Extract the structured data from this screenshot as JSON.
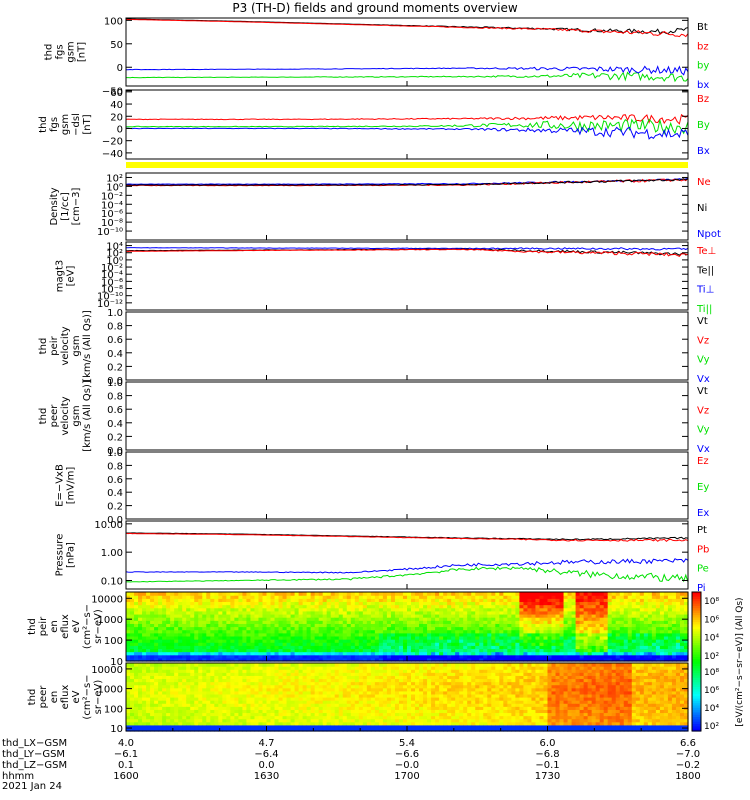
{
  "title": "P3 (TH-D) fields and ground moments overview",
  "colors": {
    "black": "#000000",
    "red": "#ff0000",
    "green": "#00e000",
    "blue": "#0000ff",
    "yellow": "#ffff00"
  },
  "chart_data": [
    {
      "type": "line",
      "ylabel_lines": [
        "thd",
        "fgs",
        "gsm",
        "[nT]"
      ],
      "ylim": [
        -40,
        105
      ],
      "yticks": [
        {
          "v": 100,
          "t": "100"
        },
        {
          "v": 50,
          "t": "50"
        },
        {
          "v": 0,
          "t": "0"
        },
        {
          "v": -50,
          "t": "−50"
        }
      ],
      "legend": [
        {
          "t": "Bt",
          "c": "black"
        },
        {
          "t": "bz",
          "c": "red"
        },
        {
          "t": "by",
          "c": "green"
        },
        {
          "t": "bx",
          "c": "blue"
        }
      ],
      "series": [
        {
          "c": "black",
          "x": [
            0,
            0.2,
            0.4,
            0.6,
            0.75,
            0.85,
            0.95,
            1.0
          ],
          "y": [
            103,
            98,
            92,
            86,
            82,
            78,
            76,
            80
          ],
          "noise": [
            0,
            0,
            0,
            1,
            2,
            4,
            5,
            5
          ]
        },
        {
          "c": "red",
          "x": [
            0,
            0.2,
            0.4,
            0.6,
            0.75,
            0.85,
            0.95,
            1.0
          ],
          "y": [
            102,
            97,
            91,
            85,
            81,
            76,
            72,
            70
          ],
          "noise": [
            0,
            0,
            0,
            1,
            2,
            4,
            6,
            6
          ]
        },
        {
          "c": "green",
          "x": [
            0,
            0.3,
            0.6,
            0.75,
            0.85,
            0.95,
            1.0
          ],
          "y": [
            -22,
            -21,
            -20,
            -19,
            -18,
            -20,
            -22
          ],
          "noise": [
            0.5,
            0.5,
            1,
            3,
            8,
            9,
            10
          ]
        },
        {
          "c": "blue",
          "x": [
            0,
            0.3,
            0.6,
            0.75,
            0.85,
            0.95,
            1.0
          ],
          "y": [
            -5,
            -4,
            -2,
            -3,
            -4,
            -6,
            -8
          ],
          "noise": [
            0.4,
            0.4,
            0.8,
            3,
            6,
            8,
            9
          ]
        }
      ]
    },
    {
      "type": "line",
      "ylabel_lines": [
        "thd",
        "fgs",
        "gsm",
        "−dsl"
      ],
      "ylabel_tail": "[nT]",
      "ylim": [
        -50,
        63
      ],
      "yticks": [
        {
          "v": 60,
          "t": "60"
        },
        {
          "v": 40,
          "t": "40"
        },
        {
          "v": 20,
          "t": "20"
        },
        {
          "v": 0,
          "t": "0"
        },
        {
          "v": -20,
          "t": "−20"
        },
        {
          "v": -40,
          "t": "−40"
        }
      ],
      "legend": [
        {
          "t": "Bz",
          "c": "red"
        },
        {
          "t": "By",
          "c": "green"
        },
        {
          "t": "Bx",
          "c": "blue"
        }
      ],
      "series": [
        {
          "c": "red",
          "x": [
            0,
            0.3,
            0.6,
            0.75,
            0.85,
            0.95,
            1.0
          ],
          "y": [
            15,
            15,
            16,
            17,
            18,
            16,
            15
          ],
          "noise": [
            0.5,
            0.5,
            1,
            3,
            5,
            7,
            8
          ]
        },
        {
          "c": "green",
          "x": [
            0,
            0.3,
            0.55,
            0.7,
            0.8,
            0.9,
            1.0
          ],
          "y": [
            3,
            3,
            4,
            6,
            5,
            4,
            3
          ],
          "noise": [
            0.5,
            0.5,
            1,
            4,
            9,
            11,
            12
          ]
        },
        {
          "c": "blue",
          "x": [
            0,
            0.3,
            0.6,
            0.75,
            0.85,
            0.95,
            1.0
          ],
          "y": [
            0,
            0,
            -1,
            -3,
            -5,
            -8,
            -10
          ],
          "noise": [
            0.4,
            0.4,
            1,
            4,
            8,
            10,
            11
          ]
        }
      ]
    },
    {
      "type": "line",
      "ylabel_lines": [
        "Density",
        "[1/cc]",
        "[cm−3]"
      ],
      "ylim": [
        -12,
        3
      ],
      "yticks": [
        {
          "v": 2,
          "t": "10²"
        },
        {
          "v": 0,
          "t": "10⁰"
        },
        {
          "v": -2,
          "t": "10⁻²"
        },
        {
          "v": -4,
          "t": "10⁻⁴"
        },
        {
          "v": -6,
          "t": "10⁻⁶"
        },
        {
          "v": -8,
          "t": "10⁻⁸"
        },
        {
          "v": -10,
          "t": "10⁻¹⁰"
        }
      ],
      "legend": [
        {
          "t": "Ne",
          "c": "red"
        },
        {
          "t": "Ni",
          "c": "black"
        },
        {
          "t": "Npot",
          "c": "blue"
        }
      ],
      "series": [
        {
          "c": "blue",
          "x": [
            0,
            0.3,
            0.6,
            0.75,
            0.9,
            1.0
          ],
          "y": [
            0.5,
            0.5,
            0.6,
            0.9,
            1.3,
            1.6
          ],
          "noise": [
            0.05,
            0.05,
            0.1,
            0.2,
            0.2,
            0.2
          ]
        },
        {
          "c": "red",
          "x": [
            0,
            0.3,
            0.6,
            0.75,
            0.9,
            1.0
          ],
          "y": [
            0.2,
            0.2,
            0.3,
            0.8,
            1.2,
            1.5
          ],
          "noise": [
            0.05,
            0.05,
            0.1,
            0.25,
            0.3,
            0.3
          ]
        },
        {
          "c": "black",
          "x": [
            0,
            0.3,
            0.6,
            0.75,
            0.9,
            1.0
          ],
          "y": [
            0.3,
            0.3,
            0.4,
            0.85,
            1.25,
            1.55
          ],
          "noise": [
            0.05,
            0.05,
            0.1,
            0.2,
            0.25,
            0.25
          ]
        }
      ]
    },
    {
      "type": "line",
      "ylabel_lines": [
        "magt3",
        "[eV]"
      ],
      "ylim": [
        -14,
        5
      ],
      "yticks": [
        {
          "v": 4,
          "t": "10⁴"
        },
        {
          "v": 2,
          "t": "10²"
        },
        {
          "v": 0,
          "t": "10⁰"
        },
        {
          "v": -2,
          "t": "10⁻²"
        },
        {
          "v": -4,
          "t": "10⁻⁴"
        },
        {
          "v": -6,
          "t": "10⁻⁶"
        },
        {
          "v": -8,
          "t": "10⁻⁸"
        },
        {
          "v": -10,
          "t": "10⁻¹⁰"
        },
        {
          "v": -12,
          "t": "10⁻¹²"
        }
      ],
      "legend": [
        {
          "t": "Te⊥",
          "c": "red"
        },
        {
          "t": "Te||",
          "c": "black"
        },
        {
          "t": "Ti⊥",
          "c": "blue"
        },
        {
          "t": "Ti||",
          "c": "green"
        }
      ],
      "series": [
        {
          "c": "blue",
          "x": [
            0,
            0.3,
            0.6,
            0.75,
            0.9,
            1.0
          ],
          "y": [
            3.4,
            3.3,
            3.2,
            3.2,
            3.1,
            3.0
          ],
          "noise": [
            0.05,
            0.05,
            0.1,
            0.2,
            0.3,
            0.3
          ]
        },
        {
          "c": "black",
          "x": [
            0,
            0.3,
            0.6,
            0.75,
            0.9,
            1.0
          ],
          "y": [
            2.6,
            2.8,
            3.0,
            2.5,
            2.0,
            1.6
          ],
          "noise": [
            0.05,
            0.05,
            0.1,
            0.3,
            0.4,
            0.4
          ]
        },
        {
          "c": "red",
          "x": [
            0,
            0.3,
            0.6,
            0.75,
            0.9,
            1.0
          ],
          "y": [
            2.4,
            2.7,
            2.9,
            2.2,
            1.8,
            1.3
          ],
          "noise": [
            0.05,
            0.05,
            0.1,
            0.35,
            0.45,
            0.45
          ]
        }
      ]
    },
    {
      "type": "line",
      "ylabel_lines": [
        "thd",
        "peir",
        "velocity",
        "gsm",
        "[km/s (All Qs)]"
      ],
      "ylim": [
        0,
        1
      ],
      "yticks": [
        {
          "v": 1,
          "t": "1.0"
        },
        {
          "v": 0.8,
          "t": "0.8"
        },
        {
          "v": 0.6,
          "t": "0.6"
        },
        {
          "v": 0.4,
          "t": "0.4"
        },
        {
          "v": 0.2,
          "t": "0.2"
        },
        {
          "v": 0,
          "t": "0.0"
        }
      ],
      "legend": [
        {
          "t": "Vt",
          "c": "black"
        },
        {
          "t": "Vz",
          "c": "red"
        },
        {
          "t": "Vy",
          "c": "green"
        },
        {
          "t": "Vx",
          "c": "blue"
        }
      ],
      "series": []
    },
    {
      "type": "line",
      "ylabel_lines": [
        "thd",
        "peer",
        "velocity",
        "gsm",
        "[km/s (All Qs)]"
      ],
      "ylim": [
        0,
        1
      ],
      "yticks": [
        {
          "v": 1,
          "t": "1.0"
        },
        {
          "v": 0.8,
          "t": "0.8"
        },
        {
          "v": 0.6,
          "t": "0.6"
        },
        {
          "v": 0.4,
          "t": "0.4"
        },
        {
          "v": 0.2,
          "t": "0.2"
        },
        {
          "v": 0,
          "t": "0.0"
        }
      ],
      "legend": [
        {
          "t": "Vt",
          "c": "black"
        },
        {
          "t": "Vz",
          "c": "red"
        },
        {
          "t": "Vy",
          "c": "green"
        },
        {
          "t": "Vx",
          "c": "blue"
        }
      ],
      "series": []
    },
    {
      "type": "line",
      "ylabel_lines": [
        "E=−VxB",
        "[mV/m]"
      ],
      "ylim": [
        0,
        1
      ],
      "yticks": [
        {
          "v": 1,
          "t": "1.0"
        },
        {
          "v": 0.8,
          "t": "0.8"
        },
        {
          "v": 0.6,
          "t": "0.6"
        },
        {
          "v": 0.4,
          "t": "0.4"
        },
        {
          "v": 0.2,
          "t": "0.2"
        },
        {
          "v": 0,
          "t": "0.0"
        }
      ],
      "legend": [
        {
          "t": "Ez",
          "c": "red"
        },
        {
          "t": "Ey",
          "c": "green"
        },
        {
          "t": "Ex",
          "c": "blue"
        }
      ],
      "series": []
    },
    {
      "type": "line",
      "ylabel_lines": [
        "Pressure",
        "[nPa]"
      ],
      "ylim": [
        -1.3,
        1.1
      ],
      "yticks": [
        {
          "v": 1,
          "t": "10.00"
        },
        {
          "v": 0,
          "t": "1.00"
        },
        {
          "v": -1,
          "t": "0.10"
        }
      ],
      "legend": [
        {
          "t": "Pt",
          "c": "black"
        },
        {
          "t": "Pb",
          "c": "red"
        },
        {
          "t": "Pe",
          "c": "green"
        },
        {
          "t": "Pi",
          "c": "blue"
        }
      ],
      "series": [
        {
          "c": "black",
          "x": [
            0,
            0.2,
            0.4,
            0.6,
            0.8,
            1.0
          ],
          "y": [
            0.68,
            0.64,
            0.57,
            0.5,
            0.45,
            0.5
          ],
          "noise": [
            0.005,
            0.005,
            0.005,
            0.01,
            0.02,
            0.03
          ]
        },
        {
          "c": "red",
          "x": [
            0,
            0.2,
            0.4,
            0.6,
            0.8,
            1.0
          ],
          "y": [
            0.66,
            0.62,
            0.55,
            0.48,
            0.42,
            0.42
          ],
          "noise": [
            0.005,
            0.005,
            0.005,
            0.01,
            0.03,
            0.04
          ]
        },
        {
          "c": "blue",
          "x": [
            0,
            0.2,
            0.4,
            0.5,
            0.6,
            0.8,
            1.0
          ],
          "y": [
            -0.7,
            -0.7,
            -0.72,
            -0.6,
            -0.45,
            -0.35,
            -0.3
          ],
          "noise": [
            0.01,
            0.01,
            0.02,
            0.03,
            0.05,
            0.08,
            0.08
          ]
        },
        {
          "c": "green",
          "x": [
            0,
            0.2,
            0.4,
            0.5,
            0.6,
            0.7,
            0.8,
            0.9,
            1.0
          ],
          "y": [
            -1.05,
            -1.0,
            -0.95,
            -0.8,
            -0.6,
            -0.55,
            -0.75,
            -0.85,
            -0.95
          ],
          "noise": [
            0.01,
            0.01,
            0.03,
            0.04,
            0.05,
            0.06,
            0.12,
            0.14,
            0.14
          ]
        }
      ]
    },
    {
      "type": "heatmap",
      "ylabel_lines": [
        "thd",
        "peir",
        "en",
        "eflux",
        "eV",
        "(cm²−s−",
        "sr−eV)"
      ],
      "ylim": [
        1,
        4.3
      ],
      "yticks": [
        {
          "v": 4,
          "t": "10000"
        },
        {
          "v": 3,
          "t": "1000"
        },
        {
          "v": 2,
          "t": "100"
        },
        {
          "v": 1,
          "t": "10"
        }
      ]
    },
    {
      "type": "heatmap",
      "ylabel_lines": [
        "thd",
        "peer",
        "en",
        "eflux",
        "eV",
        "(cm²−s−",
        "sr−eV)"
      ],
      "ylim": [
        0.85,
        4.3
      ],
      "yticks": [
        {
          "v": 4,
          "t": "10000"
        },
        {
          "v": 3,
          "t": "1000"
        },
        {
          "v": 2,
          "t": "100"
        },
        {
          "v": 1,
          "t": "10"
        }
      ]
    }
  ],
  "colorbar": {
    "ticks": [
      "10⁸",
      "10⁶",
      "10⁴",
      "10²"
    ],
    "label": "[eV/(cm²−s−sr−eV)] (All Qs)"
  },
  "time_axis": {
    "rows": [
      {
        "label": "thd_LX−GSM",
        "values": [
          "4.0",
          "4.7",
          "5.4",
          "6.0",
          "6.6"
        ]
      },
      {
        "label": "thd_LY−GSM",
        "values": [
          "−6.1",
          "−6.4",
          "−6.6",
          "−6.8",
          "−7.0"
        ]
      },
      {
        "label": "thd_LZ−GSM",
        "values": [
          "0.1",
          "0.0",
          "−0.0",
          "−0.1",
          "−0.2"
        ]
      },
      {
        "label": "hhmm",
        "values": [
          "1600",
          "1630",
          "1700",
          "1730",
          "1800"
        ]
      }
    ],
    "date": "2021 Jan 24"
  }
}
